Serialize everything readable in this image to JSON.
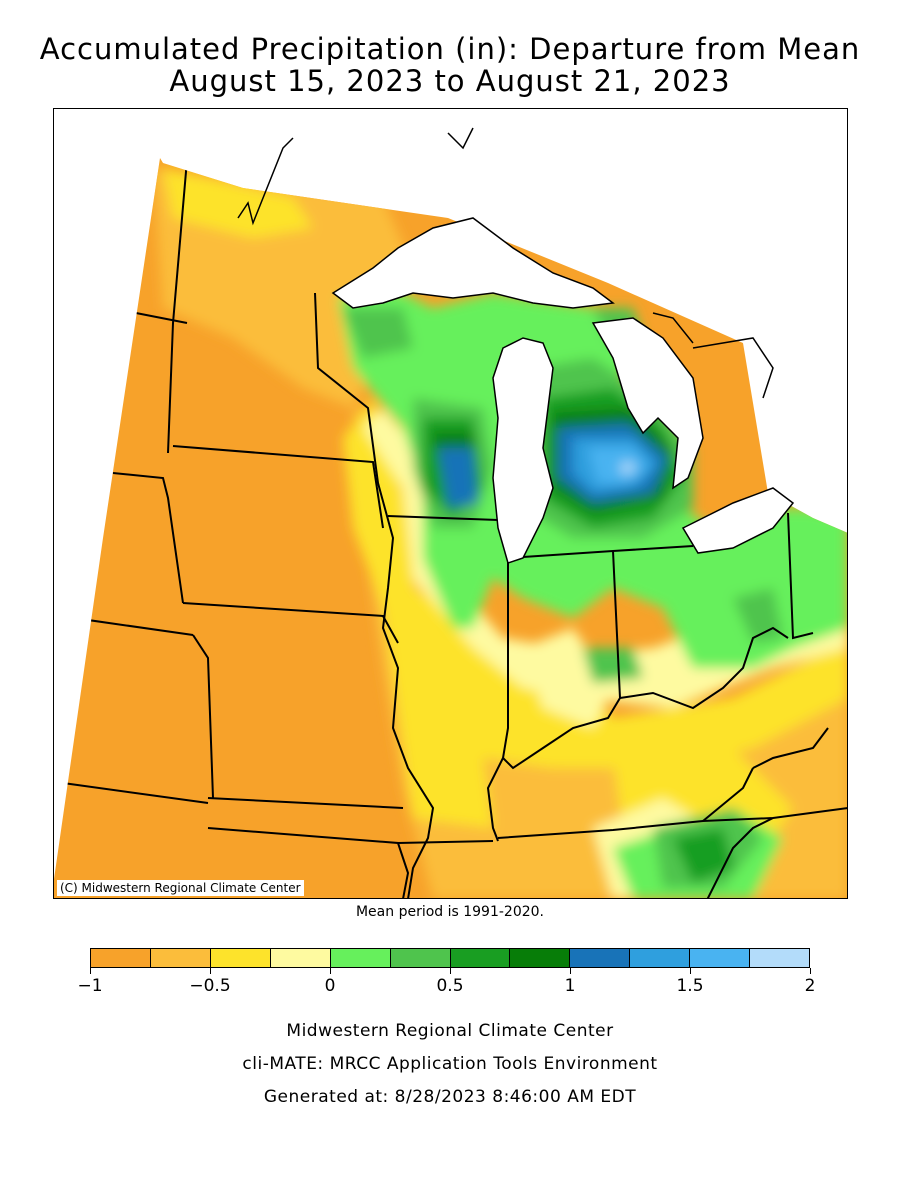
{
  "title": {
    "line1": "Accumulated Precipitation (in): Departure from Mean",
    "line2": "August 15, 2023 to August 21, 2023"
  },
  "map": {
    "copyright": "(C) Midwestern Regional Climate Center",
    "colors": {
      "background": "#ffffff",
      "land_dry": "#f7a22a",
      "lakes": "#ffffff",
      "border": "#000000"
    }
  },
  "mean_period": "Mean period is 1991-2020.",
  "legend": {
    "colors": [
      "#f7a22a",
      "#fbbd3b",
      "#fde32b",
      "#fefaa0",
      "#66f05c",
      "#4fc44d",
      "#199e22",
      "#077d08",
      "#1873b8",
      "#2f9fde",
      "#49b3f1",
      "#b3dcfa"
    ],
    "ticks": [
      {
        "value": -1,
        "label": "−1"
      },
      {
        "value": -0.5,
        "label": "−0.5"
      },
      {
        "value": 0,
        "label": "0"
      },
      {
        "value": 0.5,
        "label": "0.5"
      },
      {
        "value": 1,
        "label": "1"
      },
      {
        "value": 1.5,
        "label": "1.5"
      },
      {
        "value": 2,
        "label": "2"
      }
    ],
    "range": [
      -1,
      2
    ]
  },
  "footer": {
    "line1": "Midwestern Regional Climate Center",
    "line2": "cli-MATE: MRCC Application Tools Environment",
    "line3": "Generated at: 8/28/2023 8:46:00 AM EDT"
  }
}
